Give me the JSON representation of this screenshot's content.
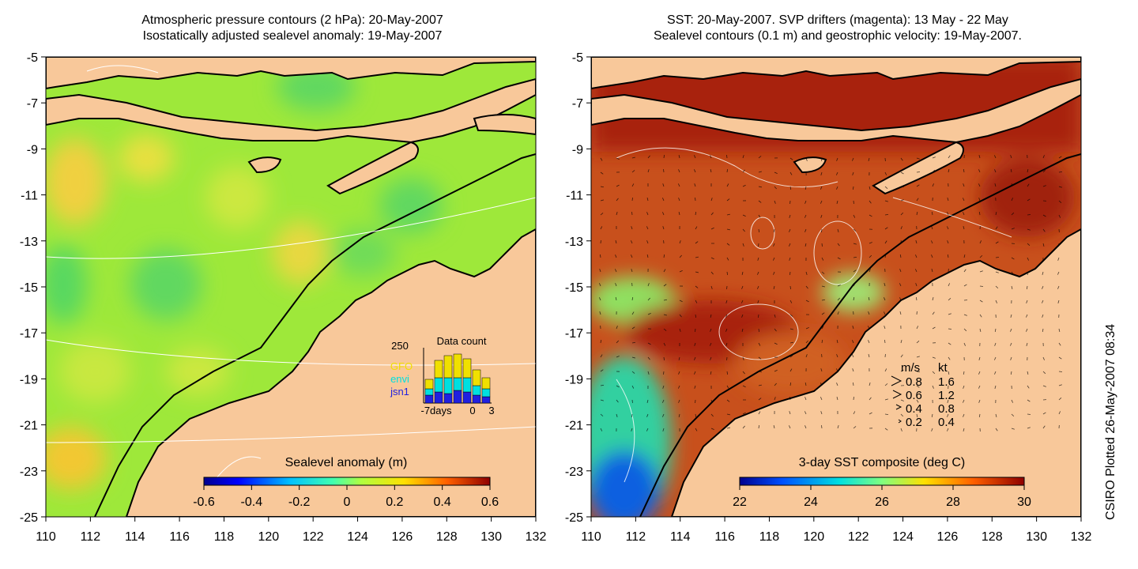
{
  "left_panel": {
    "title_line1": "Atmospheric pressure contours (2 hPa): 20-May-2007",
    "title_line2": "Isostatically adjusted sealevel anomaly: 19-May-2007",
    "colorbar_title": "Sealevel anomaly (m)",
    "colorbar_ticks": [
      "-0.6",
      "-0.4",
      "-0.2",
      "0",
      "0.2",
      "0.4",
      "0.6"
    ],
    "data_count": {
      "title": "Data count",
      "ymax_label": "250",
      "legend": [
        "GFO",
        "envi",
        "jsn1"
      ],
      "legend_colors": [
        "#f0e000",
        "#00e0e0",
        "#2020e0"
      ],
      "x_labels": [
        "-7days",
        "0",
        "3"
      ]
    }
  },
  "right_panel": {
    "title_line1": "SST: 20-May-2007. SVP drifters (magenta): 13 May - 22 May",
    "title_line2": "Sealevel contours (0.1 m) and geostrophic velocity: 19-May-2007.",
    "colorbar_title": "3-day SST composite (deg C)",
    "colorbar_ticks": [
      "22",
      "24",
      "26",
      "28",
      "30"
    ],
    "velocity_legend": {
      "header_ms": "m/s",
      "header_kt": "kt",
      "rows": [
        {
          "ms": "0.8",
          "kt": "1.6"
        },
        {
          "ms": "0.6",
          "kt": "1.2"
        },
        {
          "ms": "0.4",
          "kt": "0.8"
        },
        {
          "ms": "0.2",
          "kt": "0.4"
        }
      ]
    }
  },
  "axes": {
    "y_ticks": [
      "-5",
      "-7",
      "-9",
      "-11",
      "-13",
      "-15",
      "-17",
      "-19",
      "-21",
      "-23",
      "-25"
    ],
    "x_ticks": [
      "110",
      "112",
      "114",
      "116",
      "118",
      "120",
      "122",
      "124",
      "126",
      "128",
      "130",
      "132"
    ]
  },
  "credit": "CSIRO Plotted 26-May-2007 08:34",
  "colors": {
    "land": "#f8c89a",
    "sla_background": "#9ee83a",
    "sst_background": "#c8501c"
  }
}
